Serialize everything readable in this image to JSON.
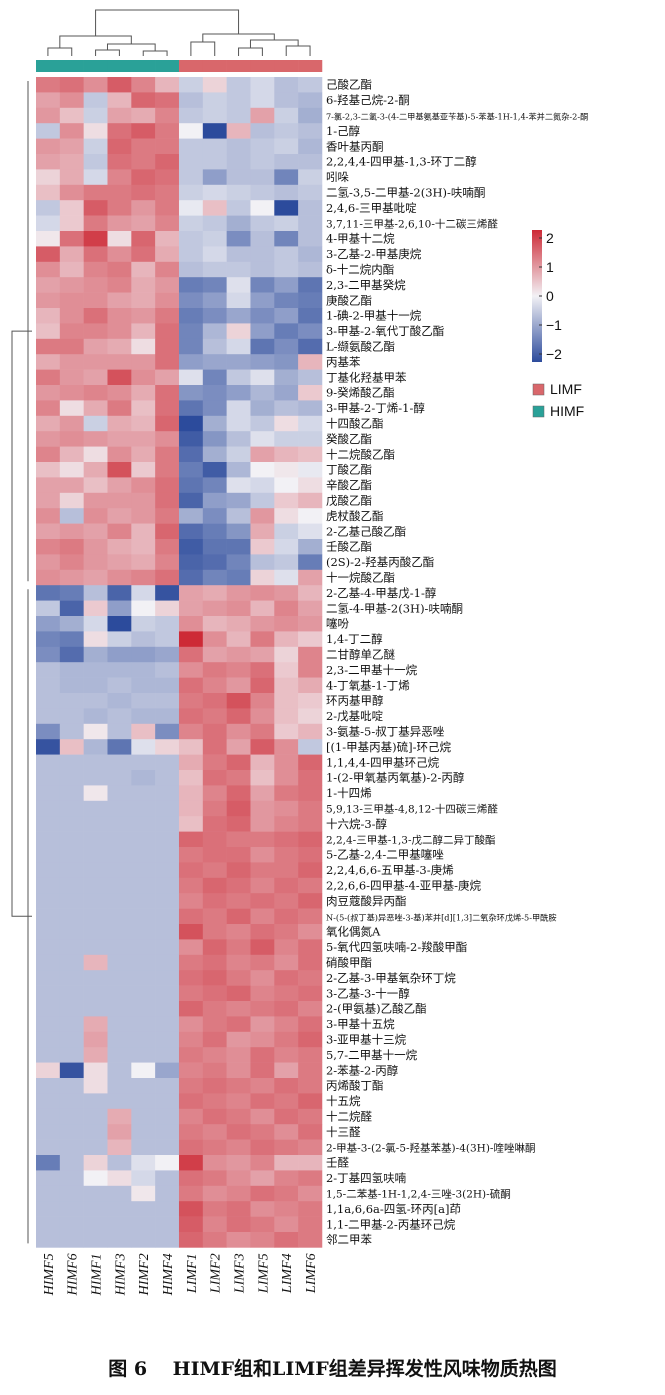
{
  "caption": "图 6　 HIMF组和LIMF组差异挥发性风味物质热图",
  "legend": {
    "groups": [
      {
        "name": "LIMF",
        "color": "#d9676b"
      },
      {
        "name": "HIMF",
        "color": "#2aa198"
      }
    ],
    "colorbar_ticks": [
      "2",
      "1",
      "0",
      "−1",
      "−2"
    ]
  },
  "colors": {
    "high": "#cd2a36",
    "mid": "#f2f1f5",
    "low": "#2c4b9c",
    "baseline": "#8c96c8"
  },
  "chart_data": {
    "type": "heatmap",
    "columns": [
      "HIMF5",
      "HIMF6",
      "HIMF1",
      "HIMF3",
      "HIMF2",
      "HIMF4",
      "LIMF1",
      "LIMF2",
      "LIMF3",
      "LIMF5",
      "LIMF4",
      "LIMF6"
    ],
    "column_groups": [
      "HIMF",
      "HIMF",
      "HIMF",
      "HIMF",
      "HIMF",
      "HIMF",
      "LIMF",
      "LIMF",
      "LIMF",
      "LIMF",
      "LIMF",
      "LIMF"
    ],
    "rows": [
      "己酸乙酯",
      "6-羟基己烷-2-酮",
      "7-氯-2,3-二氢-3-(4-二甲基氨基亚苄基)-5-苯基-1H-1,4-苯并二氮杂-2-酮",
      "1-己醇",
      "香叶基丙酮",
      "2,2,4,4-四甲基-1,3-环丁二醇",
      "吲哚",
      "二氢-3,5-二甲基-2(3H)-呋喃酮",
      "2,4,6-三甲基吡啶",
      "3,7,11-三甲基-2,6,10-十二碳三烯醛",
      "4-甲基十二烷",
      "3-乙基-2-甲基庚烷",
      "δ-十二烷内酯",
      "2,3-二甲基癸烷",
      "庚酸乙酯",
      "1-碘-2-甲基十一烷",
      "3-甲基-2-氧代丁酸乙酯",
      "L-缬氨酸乙酯",
      "丙基苯",
      "丁基化羟基甲苯",
      "9-癸烯酸乙酯",
      "3-甲基-2-丁烯-1-醇",
      "十四酸乙酯",
      "癸酸乙酯",
      "十二烷酸乙酯",
      "丁酸乙酯",
      "辛酸乙酯",
      "戊酸乙酯",
      "虎杖酸乙酯",
      "2-乙基己酸乙酯",
      "壬酸乙酯",
      "(2S)-2-羟基丙酸乙酯",
      "十一烷酸乙酯",
      "2-乙基-4-甲基戊-1-醇",
      "二氢-4-甲基-2(3H)-呋喃酮",
      "噻吩",
      "1,4-丁二醇",
      "二甘醇单乙醚",
      "2,3-二甲基十一烷",
      "4-丁氧基-1-丁烯",
      "环丙基甲醇",
      "2-戊基吡啶",
      "3-氨基-5-叔丁基异恶唑",
      "[(1-甲基丙基)硫]-环己烷",
      "1,1,4,4-四甲基环己烷",
      "1-(2-甲氧基丙氧基)-2-丙醇",
      "1-十四烯",
      "5,9,13-三甲基-4,8,12-十四碳三烯醛",
      "十六烷-3-醇",
      "2,2,4-三甲基-1,3-戊二醇二异丁酸酯",
      "5-乙基-2,4-二甲基噻唑",
      "2,2,4,6,6-五甲基-3-庚烯",
      "2,2,6,6-四甲基-4-亚甲基-庚烷",
      "肉豆蔻酸异丙酯",
      "N-(5-(叔丁基)异恶唑-3-基)苯并[d][1,3]二氧杂环戊烯-5-甲酰胺",
      "氧化偶氮A",
      "5-氧代四氢呋喃-2-羧酸甲酯",
      "硝酸甲酯",
      "2-乙基-3-甲基氧杂环丁烷",
      "3-乙基-3-十一醇",
      "2-(甲氨基)乙酸乙酯",
      "3-甲基十五烷",
      "3-亚甲基十三烷",
      "5,7-二甲基十一烷",
      "2-苯基-2-丙醇",
      "丙烯酸丁酯",
      "十五烷",
      "十二烷醛",
      "十三醛",
      "2-甲基-3-(2-氯-5-羟基苯基)-4(3H)-喹唑啉酮",
      "壬醛",
      "2-丁基四氢呋喃",
      "1,5-二苯基-1H-1,2,4-三唑-3(2H)-硫酮",
      "1,1a,6,6a-四氢-环丙[a]茚",
      "1,1-二甲基-2-丙基环己烷",
      "邻二甲苯"
    ],
    "values": [
      [
        1.2,
        1.3,
        1.0,
        1.5,
        1.1,
        0.6,
        -0.4,
        0.3,
        -0.5,
        -0.3,
        -0.6,
        -0.5
      ],
      [
        0.8,
        1.0,
        -0.5,
        0.6,
        1.4,
        1.3,
        -0.6,
        -0.4,
        -0.5,
        -0.3,
        -0.6,
        -0.7
      ],
      [
        0.9,
        0.5,
        -0.4,
        0.8,
        0.7,
        1.1,
        -0.5,
        -0.4,
        -0.5,
        0.8,
        -0.4,
        -0.8
      ],
      [
        -0.5,
        1.0,
        0.2,
        1.3,
        1.5,
        1.2,
        0.0,
        -2.0,
        0.6,
        -0.6,
        -0.5,
        -0.6
      ],
      [
        0.9,
        0.8,
        -0.4,
        1.4,
        1.2,
        1.2,
        -0.5,
        -0.5,
        -0.6,
        -0.5,
        -0.4,
        -0.7
      ],
      [
        0.8,
        0.7,
        -0.5,
        1.3,
        1.2,
        1.4,
        -0.5,
        -0.5,
        -0.6,
        -0.5,
        -0.6,
        -0.6
      ],
      [
        0.3,
        0.7,
        -0.3,
        1.1,
        1.4,
        1.3,
        -0.5,
        -1.0,
        -0.6,
        -0.6,
        -1.3,
        -0.4
      ],
      [
        0.5,
        1.0,
        1.2,
        1.2,
        1.3,
        1.2,
        -0.4,
        -0.3,
        -0.4,
        -0.5,
        -0.6,
        -0.5
      ],
      [
        -0.5,
        0.4,
        1.5,
        1.2,
        0.9,
        1.2,
        -0.1,
        0.5,
        -0.5,
        0.0,
        -2.2,
        -0.6
      ],
      [
        -0.3,
        0.4,
        1.2,
        0.9,
        0.8,
        1.1,
        -0.4,
        -0.5,
        -0.8,
        -0.5,
        -0.4,
        -0.6
      ],
      [
        0.1,
        1.3,
        1.8,
        0.2,
        1.4,
        0.6,
        -0.5,
        -0.4,
        -1.2,
        -0.6,
        -1.3,
        -0.6
      ],
      [
        1.5,
        0.7,
        1.3,
        1.0,
        1.3,
        0.7,
        -0.5,
        -0.3,
        -0.6,
        -0.6,
        -0.5,
        -0.7
      ],
      [
        1.0,
        0.6,
        1.1,
        1.2,
        0.6,
        1.1,
        -0.6,
        -0.5,
        -0.5,
        -0.6,
        -0.5,
        -0.6
      ],
      [
        0.8,
        0.9,
        1.0,
        1.1,
        0.7,
        0.9,
        -1.4,
        -1.3,
        -0.2,
        -1.3,
        -1.0,
        -1.5
      ],
      [
        0.9,
        1.0,
        1.0,
        0.8,
        0.7,
        1.0,
        -1.2,
        -1.0,
        -0.3,
        -1.0,
        -1.3,
        -1.4
      ],
      [
        0.6,
        1.0,
        1.3,
        1.0,
        0.9,
        1.2,
        -1.4,
        -1.2,
        -0.9,
        -1.2,
        -1.0,
        -1.5
      ],
      [
        0.5,
        1.1,
        1.1,
        1.0,
        0.6,
        1.3,
        -1.3,
        -0.7,
        0.3,
        -1.0,
        -1.4,
        -1.2
      ],
      [
        1.2,
        1.2,
        0.8,
        0.7,
        0.2,
        1.3,
        -1.3,
        -0.6,
        -0.3,
        -1.5,
        -1.2,
        -1.6
      ],
      [
        0.7,
        0.9,
        0.9,
        0.9,
        0.9,
        1.3,
        -1.0,
        -0.9,
        -0.9,
        -1.0,
        -1.1,
        0.6
      ],
      [
        1.2,
        0.9,
        0.8,
        1.6,
        1.0,
        0.8,
        -0.2,
        -1.3,
        -0.5,
        -0.2,
        -0.8,
        -0.6
      ],
      [
        0.9,
        1.0,
        1.1,
        1.0,
        0.7,
        1.3,
        -1.1,
        -1.2,
        -1.0,
        -0.7,
        -0.9,
        0.4
      ],
      [
        1.1,
        0.2,
        0.7,
        1.2,
        0.5,
        1.3,
        -1.5,
        -1.2,
        -0.3,
        -0.8,
        -0.6,
        -0.7
      ],
      [
        0.7,
        0.9,
        -0.4,
        0.7,
        0.6,
        1.4,
        -2.0,
        -0.8,
        -0.3,
        -0.5,
        0.2,
        -0.3
      ],
      [
        0.9,
        1.0,
        0.9,
        0.8,
        0.8,
        1.0,
        -1.8,
        -1.1,
        -0.6,
        -0.2,
        -0.4,
        -0.4
      ],
      [
        1.1,
        0.6,
        0.2,
        1.0,
        0.7,
        1.2,
        -1.6,
        -0.8,
        -0.4,
        0.8,
        0.6,
        0.5
      ],
      [
        0.5,
        0.2,
        0.7,
        1.6,
        0.4,
        1.2,
        -1.4,
        -1.8,
        -0.7,
        0.0,
        0.1,
        -0.1
      ],
      [
        0.8,
        0.8,
        0.5,
        0.8,
        1.0,
        1.3,
        -1.5,
        -1.3,
        -0.2,
        -0.3,
        0.0,
        0.2
      ],
      [
        0.8,
        0.3,
        0.9,
        0.9,
        0.9,
        1.3,
        -1.7,
        -1.0,
        -0.9,
        -0.5,
        0.4,
        0.6
      ],
      [
        1.0,
        -0.6,
        1.0,
        0.8,
        0.9,
        1.2,
        -0.8,
        -1.2,
        -0.6,
        0.9,
        0.2,
        0.0
      ],
      [
        0.8,
        0.9,
        0.8,
        1.1,
        0.6,
        1.4,
        -1.6,
        -1.4,
        -1.1,
        0.7,
        -0.4,
        -0.2
      ],
      [
        1.1,
        1.2,
        0.9,
        0.7,
        0.6,
        1.2,
        -1.8,
        -1.5,
        -1.5,
        0.4,
        -0.3,
        -0.8
      ],
      [
        0.9,
        1.1,
        0.9,
        0.8,
        0.7,
        1.1,
        -1.7,
        -1.6,
        -1.3,
        -0.6,
        -0.5,
        -1.4
      ],
      [
        1.0,
        0.9,
        0.8,
        1.0,
        1.1,
        1.3,
        -1.6,
        -1.3,
        -1.4,
        0.3,
        -0.2,
        0.8
      ],
      [
        -1.5,
        -1.4,
        -0.6,
        -1.7,
        -0.3,
        -1.9,
        0.8,
        0.7,
        0.9,
        1.0,
        0.9,
        0.6
      ],
      [
        -0.5,
        -1.7,
        0.4,
        -1.0,
        0.0,
        0.3,
        0.8,
        0.9,
        1.0,
        0.6,
        1.1,
        0.8
      ],
      [
        -1.0,
        -0.8,
        -0.3,
        -2.0,
        -0.4,
        -0.5,
        1.0,
        0.6,
        0.7,
        0.9,
        1.0,
        0.9
      ],
      [
        -1.3,
        -1.4,
        0.2,
        -0.4,
        -0.6,
        -0.5,
        2.0,
        1.0,
        0.6,
        1.2,
        0.6,
        0.4
      ],
      [
        -1.2,
        -1.6,
        -0.8,
        -1.0,
        -1.0,
        -0.9,
        1.3,
        0.8,
        0.9,
        0.8,
        0.3,
        1.1
      ],
      [
        -0.6,
        -0.7,
        -0.7,
        -0.7,
        -0.7,
        -0.6,
        1.0,
        1.2,
        1.1,
        1.3,
        0.4,
        1.1
      ],
      [
        -0.6,
        -0.7,
        -0.7,
        -0.6,
        -0.7,
        -0.7,
        1.3,
        1.1,
        0.9,
        1.4,
        0.5,
        0.7
      ],
      [
        -0.6,
        -0.6,
        -0.6,
        -0.7,
        -0.6,
        -0.6,
        1.2,
        1.3,
        1.6,
        1.1,
        0.5,
        0.4
      ],
      [
        -0.6,
        -0.6,
        -0.7,
        -0.6,
        -0.7,
        -0.7,
        1.3,
        1.2,
        1.4,
        1.0,
        0.5,
        0.3
      ],
      [
        -1.2,
        -0.6,
        0.1,
        -0.6,
        0.5,
        -1.2,
        1.1,
        1.3,
        1.0,
        1.2,
        0.4,
        0.6
      ],
      [
        -1.9,
        0.5,
        -0.7,
        -1.5,
        -0.2,
        0.3,
        0.5,
        1.3,
        0.8,
        1.5,
        1.0,
        -0.5
      ],
      [
        -0.6,
        -0.6,
        -0.6,
        -0.6,
        -0.6,
        -0.6,
        0.7,
        1.2,
        1.4,
        0.6,
        1.0,
        1.4
      ],
      [
        -0.6,
        -0.6,
        -0.6,
        -0.6,
        -0.7,
        -0.6,
        0.5,
        1.3,
        1.2,
        0.5,
        1.0,
        1.3
      ],
      [
        -0.6,
        -0.6,
        0.1,
        -0.6,
        -0.6,
        -0.6,
        0.6,
        1.1,
        1.4,
        0.8,
        1.2,
        1.3
      ],
      [
        -0.6,
        -0.6,
        -0.6,
        -0.6,
        -0.6,
        -0.6,
        0.6,
        1.2,
        1.5,
        0.9,
        1.0,
        1.2
      ],
      [
        -0.6,
        -0.6,
        -0.6,
        -0.6,
        -0.6,
        -0.6,
        0.5,
        1.3,
        1.4,
        0.9,
        1.1,
        1.2
      ],
      [
        -0.6,
        -0.6,
        -0.6,
        -0.6,
        -0.6,
        -0.6,
        1.4,
        1.3,
        1.2,
        1.2,
        1.3,
        1.4
      ],
      [
        -0.6,
        -0.6,
        -0.6,
        -0.6,
        -0.6,
        -0.6,
        1.2,
        1.3,
        1.3,
        1.0,
        1.2,
        1.3
      ],
      [
        -0.6,
        -0.6,
        -0.6,
        -0.6,
        -0.6,
        -0.6,
        1.3,
        1.2,
        1.4,
        1.2,
        1.2,
        1.4
      ],
      [
        -0.6,
        -0.6,
        -0.6,
        -0.6,
        -0.6,
        -0.6,
        1.2,
        1.4,
        1.3,
        1.1,
        1.3,
        1.2
      ],
      [
        -0.6,
        -0.6,
        -0.6,
        -0.6,
        -0.6,
        -0.6,
        1.1,
        1.3,
        1.2,
        1.3,
        1.2,
        1.4
      ],
      [
        -0.6,
        -0.6,
        -0.6,
        -0.6,
        -0.6,
        -0.6,
        1.3,
        1.2,
        1.4,
        1.1,
        1.3,
        1.2
      ],
      [
        -0.6,
        -0.6,
        -0.6,
        -0.6,
        -0.6,
        -0.6,
        1.6,
        1.2,
        1.1,
        1.3,
        1.2,
        1.0
      ],
      [
        -0.6,
        -0.6,
        -0.6,
        -0.6,
        -0.6,
        -0.6,
        1.0,
        1.4,
        1.2,
        1.5,
        1.1,
        1.3
      ],
      [
        -0.6,
        -0.6,
        0.6,
        -0.6,
        -0.6,
        -0.6,
        1.2,
        1.3,
        1.1,
        1.2,
        1.0,
        1.3
      ],
      [
        -0.6,
        -0.6,
        -0.6,
        -0.6,
        -0.6,
        -0.6,
        1.3,
        1.4,
        1.2,
        1.0,
        1.3,
        1.2
      ],
      [
        -0.6,
        -0.6,
        -0.6,
        -0.6,
        -0.6,
        -0.6,
        1.2,
        1.3,
        1.4,
        1.1,
        1.2,
        1.3
      ],
      [
        -0.6,
        -0.6,
        -0.6,
        -0.6,
        -0.6,
        -0.6,
        1.4,
        1.2,
        1.1,
        1.2,
        1.3,
        1.1
      ],
      [
        -0.6,
        -0.6,
        0.7,
        -0.6,
        -0.6,
        -0.6,
        1.0,
        1.2,
        1.3,
        0.9,
        1.1,
        1.3
      ],
      [
        -0.6,
        -0.6,
        0.8,
        -0.6,
        -0.6,
        -0.6,
        1.1,
        1.3,
        0.9,
        1.0,
        1.2,
        1.4
      ],
      [
        -0.6,
        -0.6,
        0.7,
        -0.6,
        -0.6,
        -0.6,
        1.2,
        1.1,
        1.0,
        1.3,
        1.1,
        1.2
      ],
      [
        0.3,
        -1.9,
        0.2,
        -0.6,
        0.0,
        -0.9,
        1.1,
        1.2,
        1.0,
        1.3,
        0.8,
        1.2
      ],
      [
        -0.6,
        -0.6,
        0.2,
        -0.6,
        -0.6,
        -0.6,
        1.2,
        1.3,
        1.2,
        1.1,
        1.3,
        1.2
      ],
      [
        -0.6,
        -0.6,
        -0.6,
        -0.6,
        -0.6,
        -0.6,
        1.3,
        1.2,
        1.1,
        1.3,
        1.2,
        1.4
      ],
      [
        -0.6,
        -0.6,
        -0.6,
        0.7,
        -0.6,
        -0.6,
        1.1,
        1.3,
        1.2,
        1.0,
        1.3,
        1.2
      ],
      [
        -0.6,
        -0.6,
        -0.6,
        0.8,
        -0.6,
        -0.6,
        1.2,
        1.1,
        1.3,
        1.2,
        1.0,
        1.3
      ],
      [
        -0.6,
        -0.6,
        -0.6,
        0.6,
        -0.6,
        -0.6,
        1.3,
        1.2,
        1.1,
        1.3,
        1.2,
        1.1
      ],
      [
        -1.4,
        -0.6,
        0.3,
        -0.6,
        -0.2,
        0.0,
        1.8,
        1.0,
        0.9,
        1.1,
        0.6,
        0.6
      ],
      [
        -0.6,
        -0.6,
        0.0,
        0.2,
        -0.3,
        -0.6,
        1.3,
        1.2,
        1.0,
        0.8,
        1.1,
        1.2
      ],
      [
        -0.6,
        -0.6,
        -0.6,
        -0.6,
        0.1,
        -0.6,
        1.2,
        1.0,
        1.1,
        1.3,
        1.2,
        1.0
      ],
      [
        -0.6,
        -0.6,
        -0.6,
        -0.6,
        -0.6,
        -0.6,
        1.6,
        1.2,
        1.3,
        1.0,
        1.1,
        1.2
      ],
      [
        -0.6,
        -0.6,
        -0.6,
        -0.6,
        -0.6,
        -0.6,
        1.5,
        1.1,
        1.3,
        1.2,
        1.0,
        1.2
      ],
      [
        -0.6,
        -0.6,
        -0.6,
        -0.6,
        -0.6,
        -0.6,
        1.4,
        1.2,
        1.0,
        1.1,
        1.3,
        1.2
      ]
    ],
    "color_scale": {
      "min": -2,
      "max": 2
    }
  }
}
